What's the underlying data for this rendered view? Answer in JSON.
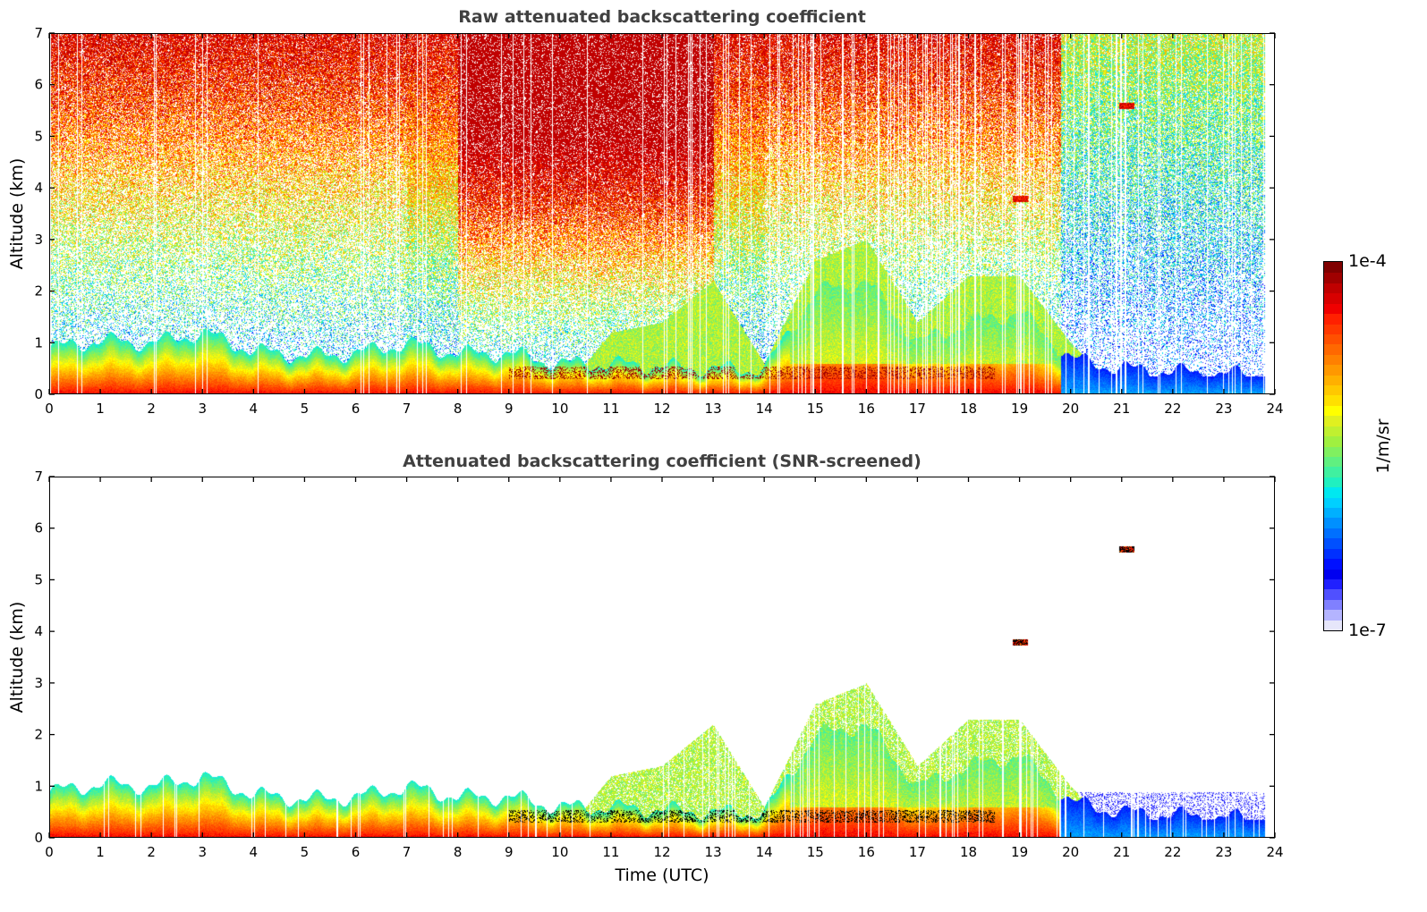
{
  "chart_data": [
    {
      "type": "heatmap",
      "title": "Raw attenuated backscattering coefficient",
      "xlabel": "",
      "ylabel": "Altitude (km)",
      "xlim": [
        0,
        24
      ],
      "ylim": [
        0,
        7
      ],
      "xticks": [
        "0",
        "1",
        "2",
        "3",
        "4",
        "5",
        "6",
        "7",
        "8",
        "9",
        "10",
        "11",
        "12",
        "13",
        "14",
        "15",
        "16",
        "17",
        "18",
        "19",
        "20",
        "21",
        "22",
        "23",
        "24"
      ],
      "yticks": [
        "0",
        "1",
        "2",
        "3",
        "4",
        "5",
        "6",
        "7"
      ],
      "screened": false,
      "data_end_hour": 23.8,
      "boundary_layer_top_km_by_hour": [
        0.9,
        1.05,
        1.0,
        1.2,
        0.85,
        0.75,
        0.8,
        1.0,
        0.8,
        0.8,
        0.6,
        0.6,
        0.55,
        0.5,
        0.5,
        2.0,
        2.2,
        1.0,
        1.4,
        1.6,
        0.7,
        0.5,
        0.45,
        0.4,
        0.4
      ],
      "aerosol_layer_top_km_by_hour": [
        0.0,
        0.0,
        0.0,
        0.0,
        0.0,
        0.0,
        0.0,
        0.0,
        0.0,
        0.0,
        0.0,
        1.2,
        1.4,
        2.2,
        0.6,
        2.6,
        3.0,
        1.4,
        2.3,
        2.3,
        1.0,
        0.0,
        0.0,
        0.0,
        0.0
      ],
      "clouds": [
        {
          "time_utc": 19.0,
          "altitude_km": 3.8
        },
        {
          "time_utc": 21.1,
          "altitude_km": 5.6
        }
      ],
      "colorbar": {
        "label": "1/m/sr",
        "min_label": "1e-7",
        "max_label": "1e-4",
        "scale": "log",
        "min": 1e-07,
        "max": 0.0001
      }
    },
    {
      "type": "heatmap",
      "title": "Attenuated backscattering coefficient (SNR-screened)",
      "xlabel": "Time (UTC)",
      "ylabel": "Altitude (km)",
      "xlim": [
        0,
        24
      ],
      "ylim": [
        0,
        7
      ],
      "xticks": [
        "0",
        "1",
        "2",
        "3",
        "4",
        "5",
        "6",
        "7",
        "8",
        "9",
        "10",
        "11",
        "12",
        "13",
        "14",
        "15",
        "16",
        "17",
        "18",
        "19",
        "20",
        "21",
        "22",
        "23",
        "24"
      ],
      "yticks": [
        "0",
        "1",
        "2",
        "3",
        "4",
        "5",
        "6",
        "7"
      ],
      "screened": true,
      "data_end_hour": 23.8,
      "boundary_layer_top_km_by_hour": [
        0.9,
        1.05,
        1.0,
        1.2,
        0.85,
        0.75,
        0.8,
        1.0,
        0.8,
        0.8,
        0.6,
        0.6,
        0.55,
        0.5,
        0.5,
        2.0,
        2.2,
        1.0,
        1.4,
        1.6,
        0.7,
        0.5,
        0.45,
        0.4,
        0.4
      ],
      "aerosol_layer_top_km_by_hour": [
        0.0,
        0.0,
        0.0,
        0.0,
        0.0,
        0.0,
        0.0,
        0.0,
        0.0,
        0.0,
        0.0,
        1.2,
        1.4,
        2.2,
        0.6,
        2.6,
        3.0,
        1.4,
        2.3,
        2.3,
        1.0,
        0.0,
        0.0,
        0.0,
        0.0
      ],
      "clouds": [
        {
          "time_utc": 19.0,
          "altitude_km": 3.8
        },
        {
          "time_utc": 21.1,
          "altitude_km": 5.6
        }
      ],
      "colorbar": {
        "label": "1/m/sr",
        "min_label": "1e-7",
        "max_label": "1e-4",
        "scale": "log",
        "min": 1e-07,
        "max": 0.0001
      }
    }
  ],
  "colors": {
    "colormap": [
      "#e6e6fa",
      "#b4b4ff",
      "#8080ff",
      "#5050ff",
      "#2020ff",
      "#0000f0",
      "#0010ff",
      "#0030ff",
      "#0050ff",
      "#0070ff",
      "#0090ff",
      "#00b0ff",
      "#00d0ff",
      "#00e8f0",
      "#20f0c0",
      "#40f0a0",
      "#60f080",
      "#80f060",
      "#a0f040",
      "#c0f030",
      "#e0f020",
      "#ffff00",
      "#ffe000",
      "#ffc800",
      "#ffb000",
      "#ff9800",
      "#ff8000",
      "#ff6800",
      "#ff5000",
      "#ff3800",
      "#ff2000",
      "#f00000",
      "#d80000",
      "#c00000",
      "#a00000",
      "#800000"
    ],
    "title_color": "#404040"
  }
}
